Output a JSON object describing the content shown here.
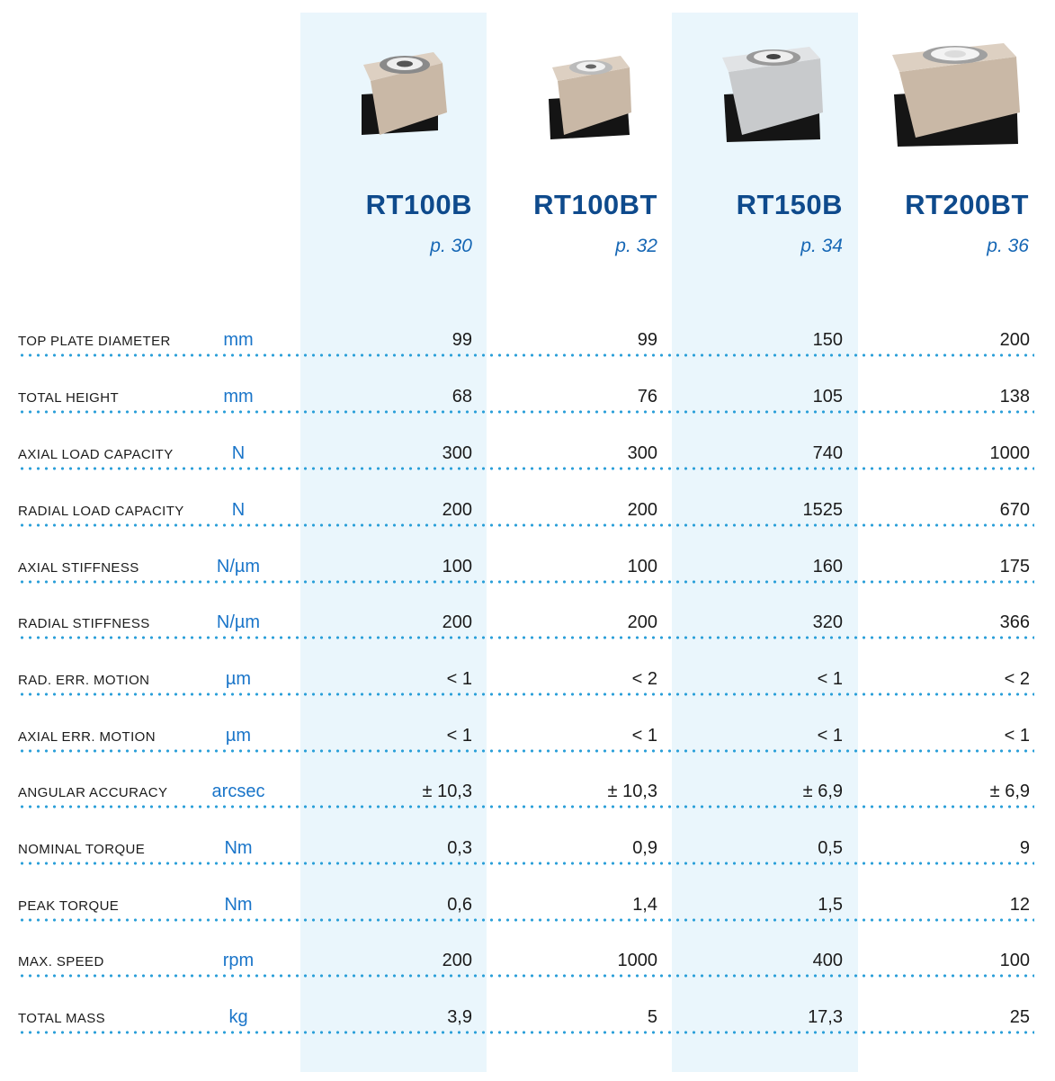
{
  "colors": {
    "band": "#eaf6fc",
    "title": "#0e4a8c",
    "page_ref": "#1667b5",
    "unit": "#1a75c9",
    "dotted_rule": "#2a9fd8"
  },
  "products": [
    {
      "name": "RT100B",
      "page": "p. 30",
      "image": "rotary-stage-rt100b-icon"
    },
    {
      "name": "RT100BT",
      "page": "p. 32",
      "image": "rotary-stage-rt100bt-icon"
    },
    {
      "name": "RT150B",
      "page": "p. 34",
      "image": "rotary-stage-rt150b-icon"
    },
    {
      "name": "RT200BT",
      "page": "p. 36",
      "image": "rotary-stage-rt200bt-icon"
    }
  ],
  "rows": [
    {
      "label": "TOP PLATE DIAMETER",
      "unit": "mm",
      "values": [
        "99",
        "99",
        "150",
        "200"
      ]
    },
    {
      "label": "TOTAL HEIGHT",
      "unit": "mm",
      "values": [
        "68",
        "76",
        "105",
        "138"
      ]
    },
    {
      "label": "AXIAL LOAD CAPACITY",
      "unit": "N",
      "values": [
        "300",
        "300",
        "740",
        "1000"
      ]
    },
    {
      "label": "RADIAL LOAD CAPACITY",
      "unit": "N",
      "values": [
        "200",
        "200",
        "1525",
        "670"
      ]
    },
    {
      "label": "AXIAL STIFFNESS",
      "unit": "N/µm",
      "values": [
        "100",
        "100",
        "160",
        "175"
      ]
    },
    {
      "label": "RADIAL STIFFNESS",
      "unit": "N/µm",
      "values": [
        "200",
        "200",
        "320",
        "366"
      ]
    },
    {
      "label": "RAD. ERR. MOTION",
      "unit": "µm",
      "values": [
        "< 1",
        "< 2",
        "< 1",
        "< 2"
      ]
    },
    {
      "label": "AXIAL ERR. MOTION",
      "unit": "µm",
      "values": [
        "< 1",
        "< 1",
        "< 1",
        "< 1"
      ]
    },
    {
      "label": "ANGULAR ACCURACY",
      "unit": "arcsec",
      "values": [
        "± 10,3",
        "± 10,3",
        "± 6,9",
        "± 6,9"
      ]
    },
    {
      "label": "NOMINAL TORQUE",
      "unit": "Nm",
      "values": [
        "0,3",
        "0,9",
        "0,5",
        "9"
      ]
    },
    {
      "label": "PEAK TORQUE",
      "unit": "Nm",
      "values": [
        "0,6",
        "1,4",
        "1,5",
        "12"
      ]
    },
    {
      "label": "MAX. SPEED",
      "unit": "rpm",
      "values": [
        "200",
        "1000",
        "400",
        "100"
      ]
    },
    {
      "label": "TOTAL MASS",
      "unit": "kg",
      "values": [
        "3,9",
        "5",
        "17,3",
        "25"
      ]
    }
  ]
}
